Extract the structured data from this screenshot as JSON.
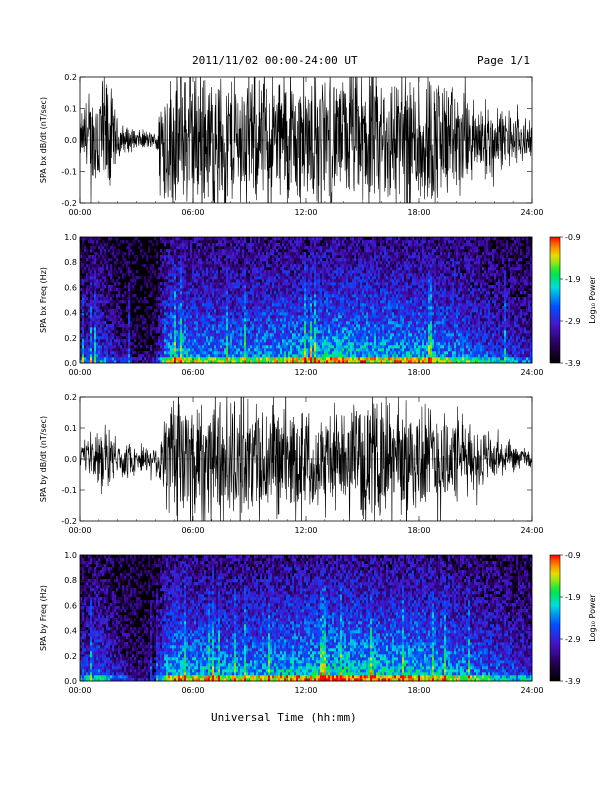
{
  "header": {
    "title": "2011/11/02  00:00-24:00 UT",
    "page": "Page 1/1"
  },
  "footer": {
    "xlabel": "Universal Time (hh:mm)"
  },
  "chart_data": [
    {
      "type": "line",
      "title": "",
      "ylabel": "SPA bx dB/dt (nT/sec)",
      "xlabel": "",
      "x_ticks": [
        "00:00",
        "06:00",
        "12:00",
        "18:00",
        "24:00"
      ],
      "y_ticks": [
        "-0.2",
        "-0.1",
        "0.0",
        "0.1",
        "0.2"
      ],
      "xlim_hours": [
        0,
        24
      ],
      "ylim": [
        -0.2,
        0.2
      ],
      "envelope": {
        "hours": [
          0,
          0.5,
          1.0,
          1.5,
          2.0,
          2.5,
          3.0,
          3.5,
          4.0,
          4.5,
          5.0,
          6.0,
          7.0,
          8.0,
          9.0,
          10.0,
          11.0,
          12.0,
          13.0,
          14.0,
          15.0,
          16.0,
          17.0,
          18.0,
          19.0,
          20.0,
          21.0,
          22.0,
          23.0,
          24.0
        ],
        "amplitude": [
          0.05,
          0.12,
          0.2,
          0.2,
          0.06,
          0.04,
          0.03,
          0.03,
          0.02,
          0.2,
          0.2,
          0.2,
          0.2,
          0.2,
          0.18,
          0.2,
          0.2,
          0.2,
          0.2,
          0.18,
          0.2,
          0.2,
          0.2,
          0.2,
          0.2,
          0.15,
          0.12,
          0.1,
          0.08,
          0.05
        ]
      }
    },
    {
      "type": "heatmap",
      "title": "",
      "ylabel": "SPA bx Freq (Hz)",
      "xlabel": "",
      "x_ticks": [
        "00:00",
        "06:00",
        "12:00",
        "18:00",
        "24:00"
      ],
      "y_ticks": [
        "0.0",
        "0.2",
        "0.4",
        "0.6",
        "0.8",
        "1.0"
      ],
      "xlim_hours": [
        0,
        24
      ],
      "ylim": [
        0,
        1.0
      ],
      "colorbar": {
        "label": "Log₁₀ Power",
        "ticks": [
          "-0.9",
          "-1.9",
          "-2.9",
          "-3.9"
        ],
        "range": [
          -3.9,
          -0.9
        ]
      },
      "activity": {
        "hours": [
          0,
          1.0,
          2.0,
          3.0,
          4.0,
          4.5,
          5.0,
          6.0,
          8.0,
          10.0,
          12.0,
          14.0,
          16.0,
          18.0,
          20.0,
          22.0,
          24.0
        ],
        "level": [
          0.45,
          0.55,
          0.35,
          0.2,
          0.2,
          0.7,
          0.8,
          0.75,
          0.7,
          0.75,
          0.8,
          0.85,
          0.8,
          0.8,
          0.7,
          0.55,
          0.45
        ]
      }
    },
    {
      "type": "line",
      "title": "",
      "ylabel": "SPA by dB/dt (nT/sec)",
      "xlabel": "",
      "x_ticks": [
        "00:00",
        "06:00",
        "12:00",
        "18:00",
        "24:00"
      ],
      "y_ticks": [
        "-0.2",
        "-0.1",
        "0.0",
        "0.1",
        "0.2"
      ],
      "xlim_hours": [
        0,
        24
      ],
      "ylim": [
        -0.2,
        0.2
      ],
      "envelope": {
        "hours": [
          0,
          0.5,
          1.0,
          1.5,
          2.0,
          2.5,
          3.0,
          3.5,
          4.0,
          4.5,
          5.0,
          6.0,
          7.0,
          8.0,
          9.0,
          10.0,
          11.0,
          12.0,
          13.0,
          14.0,
          15.0,
          16.0,
          17.0,
          18.0,
          19.0,
          20.0,
          21.0,
          22.0,
          23.0,
          24.0
        ],
        "amplitude": [
          0.03,
          0.05,
          0.09,
          0.08,
          0.06,
          0.05,
          0.04,
          0.04,
          0.04,
          0.15,
          0.2,
          0.2,
          0.2,
          0.2,
          0.16,
          0.17,
          0.16,
          0.15,
          0.14,
          0.13,
          0.16,
          0.18,
          0.16,
          0.17,
          0.16,
          0.12,
          0.1,
          0.07,
          0.04,
          0.03
        ]
      }
    },
    {
      "type": "heatmap",
      "title": "",
      "ylabel": "SPA by Freq (Hz)",
      "xlabel": "",
      "x_ticks": [
        "00:00",
        "06:00",
        "12:00",
        "18:00",
        "24:00"
      ],
      "y_ticks": [
        "0.0",
        "0.2",
        "0.4",
        "0.6",
        "0.8",
        "1.0"
      ],
      "xlim_hours": [
        0,
        24
      ],
      "ylim": [
        0,
        1.0
      ],
      "colorbar": {
        "label": "Log₁₀ Power",
        "ticks": [
          "-0.9",
          "-1.9",
          "-2.9",
          "-3.9"
        ],
        "range": [
          -3.9,
          -0.9
        ]
      },
      "activity": {
        "hours": [
          0,
          1.0,
          2.0,
          3.0,
          4.0,
          4.5,
          5.0,
          6.0,
          8.0,
          10.0,
          12.0,
          14.0,
          16.0,
          18.0,
          20.0,
          22.0,
          24.0
        ],
        "level": [
          0.5,
          0.6,
          0.4,
          0.25,
          0.25,
          0.75,
          0.85,
          0.8,
          0.75,
          0.8,
          0.85,
          0.9,
          0.85,
          0.85,
          0.75,
          0.6,
          0.5
        ]
      }
    }
  ]
}
